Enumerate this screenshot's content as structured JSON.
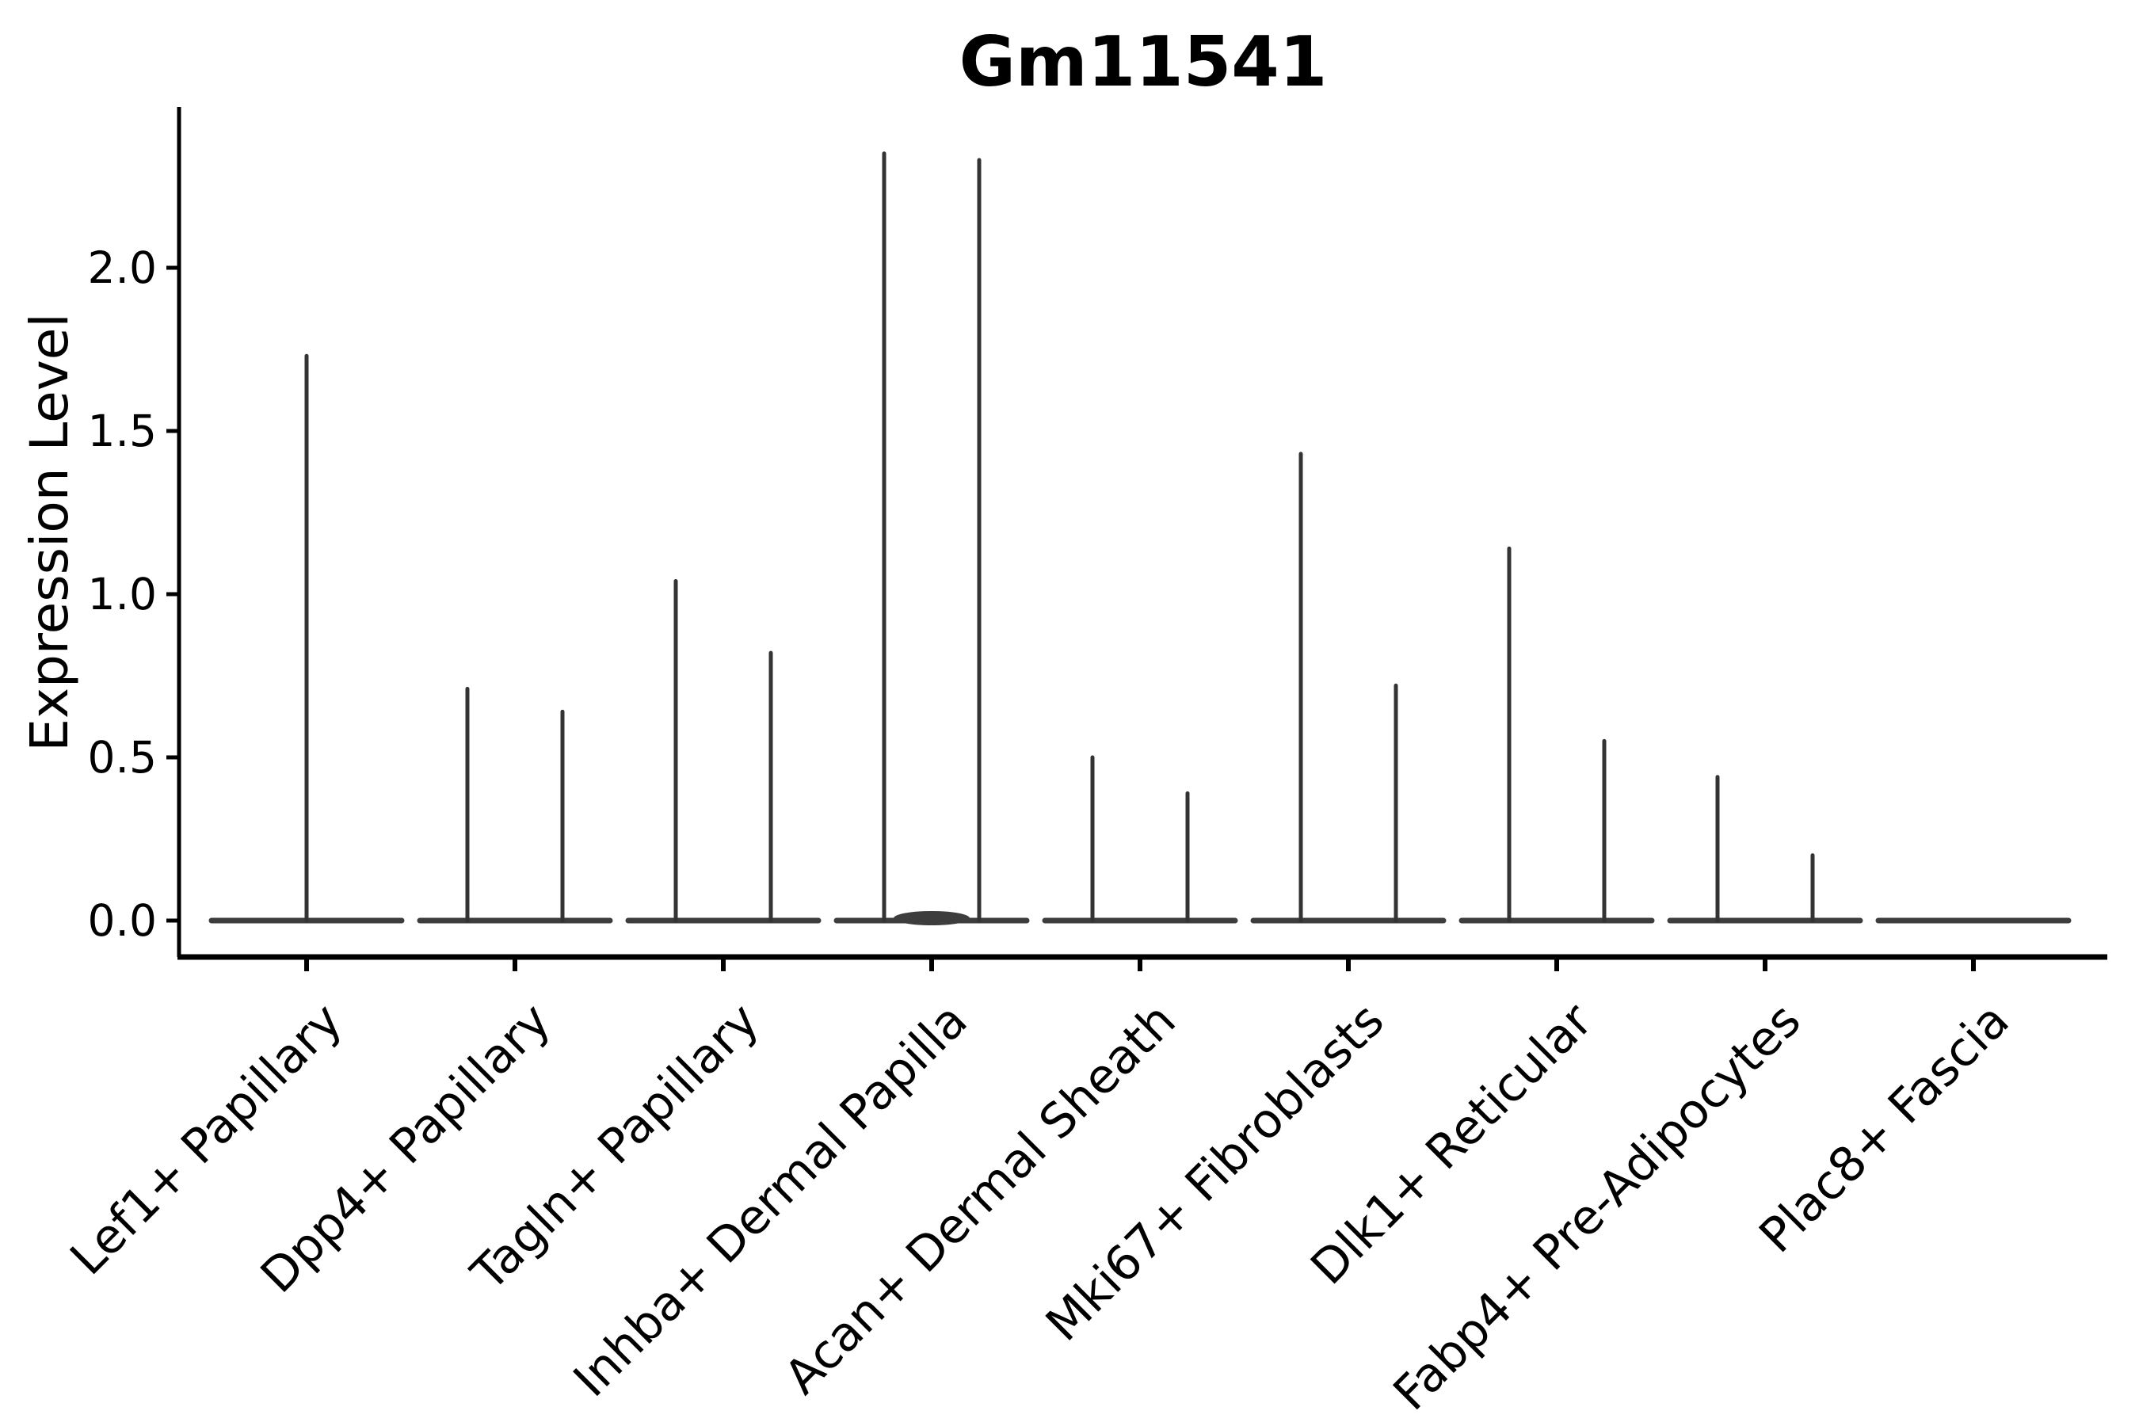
{
  "chart_data": {
    "type": "violin",
    "title": "Gm11541",
    "xlabel": "",
    "ylabel": "Expression Level",
    "ylim": [
      -0.11,
      2.49
    ],
    "yticks": [
      0.0,
      0.5,
      1.0,
      1.5,
      2.0
    ],
    "ytick_labels": [
      "0.0",
      "0.5",
      "1.0",
      "1.5",
      "2.0"
    ],
    "grid": false,
    "legend": false,
    "baseline_value": 0.0,
    "categories": [
      "Lef1+ Papillary",
      "Dpp4+ Papillary",
      "Tagln+ Papillary",
      "Inhba+ Dermal Papilla",
      "Acan+ Dermal Sheath",
      "Mki67+ Fibroblasts",
      "Dlk1+ Reticular",
      "Fabp4+ Pre-Adipocytes",
      "Plac8+ Fascia"
    ],
    "violins": [
      {
        "category": "Lef1+ Papillary",
        "spikes": [
          {
            "position": "center",
            "max_expression": 1.73
          }
        ]
      },
      {
        "category": "Dpp4+ Papillary",
        "spikes": [
          {
            "position": "left",
            "max_expression": 0.71
          },
          {
            "position": "right",
            "max_expression": 0.64
          }
        ]
      },
      {
        "category": "Tagln+ Papillary",
        "spikes": [
          {
            "position": "left",
            "max_expression": 1.04
          },
          {
            "position": "right",
            "max_expression": 0.82
          }
        ]
      },
      {
        "category": "Inhba+ Dermal Papilla",
        "center_bump": true,
        "spikes": [
          {
            "position": "left",
            "max_expression": 2.35
          },
          {
            "position": "right",
            "max_expression": 2.33
          }
        ]
      },
      {
        "category": "Acan+ Dermal Sheath",
        "spikes": [
          {
            "position": "left",
            "max_expression": 0.5
          },
          {
            "position": "right",
            "max_expression": 0.39
          }
        ]
      },
      {
        "category": "Mki67+ Fibroblasts",
        "spikes": [
          {
            "position": "left",
            "max_expression": 1.43
          },
          {
            "position": "right",
            "max_expression": 0.72
          }
        ]
      },
      {
        "category": "Dlk1+ Reticular",
        "spikes": [
          {
            "position": "left",
            "max_expression": 1.14
          },
          {
            "position": "right",
            "max_expression": 0.55
          }
        ]
      },
      {
        "category": "Fabp4+ Pre-Adipocytes",
        "spikes": [
          {
            "position": "left",
            "max_expression": 0.44
          },
          {
            "position": "right",
            "max_expression": 0.2
          }
        ]
      },
      {
        "category": "Plac8+ Fascia",
        "spikes": []
      }
    ],
    "colors": {
      "violin_line": "#333333",
      "violin_body": "#3d3d3d",
      "axis": "#000000",
      "text": "#000000",
      "background": "#ffffff"
    }
  }
}
